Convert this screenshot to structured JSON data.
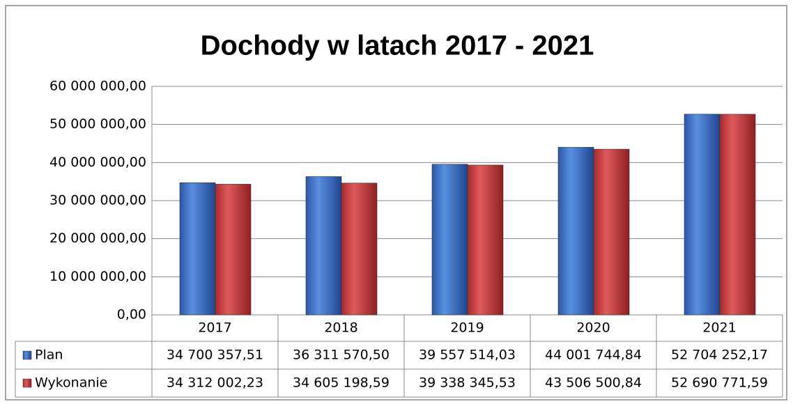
{
  "chart_data": {
    "type": "bar",
    "title": "Dochody w latach 2017 - 2021",
    "categories": [
      "2017",
      "2018",
      "2019",
      "2020",
      "2021"
    ],
    "series": [
      {
        "name": "Plan",
        "color": "#3b6fc6",
        "values": [
          34700357.51,
          36311570.5,
          39557514.03,
          44001744.84,
          52704252.17
        ],
        "value_labels": [
          "34 700 357,51",
          "36 311 570,50",
          "39 557 514,03",
          "44 001 744,84",
          "52 704 252,17"
        ]
      },
      {
        "name": "Wykonanie",
        "color": "#c43a3c",
        "values": [
          34312002.23,
          34605198.59,
          39338345.53,
          43506500.84,
          52690771.59
        ],
        "value_labels": [
          "34 312 002,23",
          "34 605 198,59",
          "39 338 345,53",
          "43 506 500,84",
          "52 690 771,59"
        ]
      }
    ],
    "ylim": [
      0,
      60000000
    ],
    "yticks": [
      {
        "value": 0,
        "label": "0,00"
      },
      {
        "value": 10000000,
        "label": "10 000 000,00"
      },
      {
        "value": 20000000,
        "label": "20 000 000,00"
      },
      {
        "value": 30000000,
        "label": "30 000 000,00"
      },
      {
        "value": 40000000,
        "label": "40 000 000,00"
      },
      {
        "value": 50000000,
        "label": "50 000 000,00"
      },
      {
        "value": 60000000,
        "label": "60 000 000,00"
      }
    ],
    "grid": true
  }
}
